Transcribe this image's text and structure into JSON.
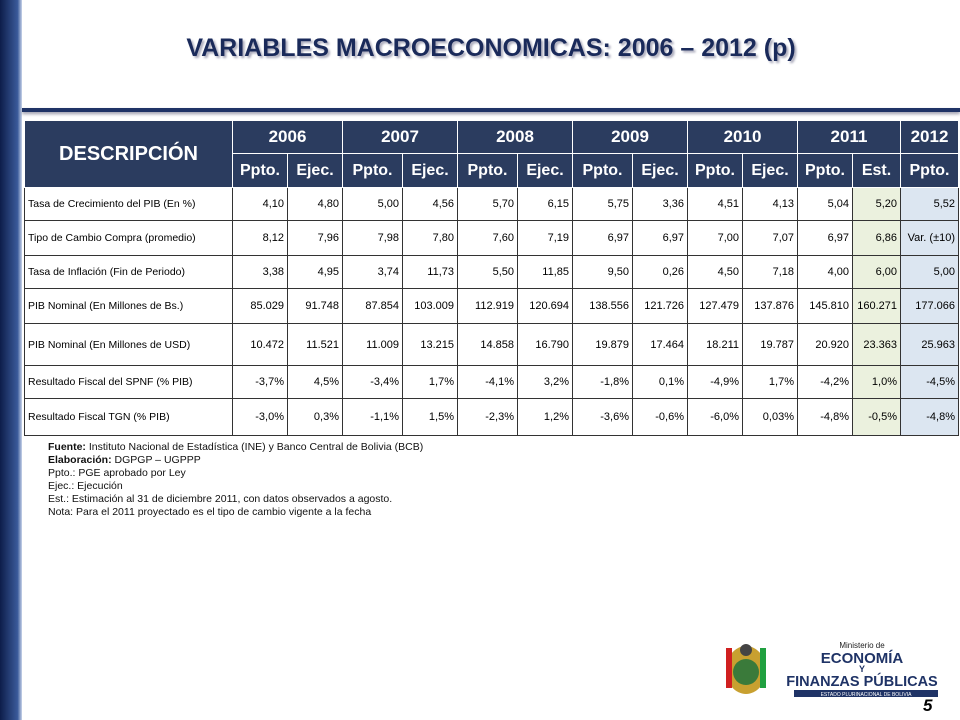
{
  "title": "VARIABLES MACROECONOMICAS: 2006 – 2012 (p)",
  "table": {
    "desc_header": "DESCRIPCIÓN",
    "years": [
      "2006",
      "2007",
      "2008",
      "2009",
      "2010",
      "2011",
      "2012"
    ],
    "subheaders": [
      "Ppto.",
      "Ejec.",
      "Ppto.",
      "Ejec.",
      "Ppto.",
      "Ejec.",
      "Ppto.",
      "Ejec.",
      "Ppto.",
      "Ejec.",
      "Ppto.",
      "Est.",
      "Ppto."
    ],
    "rows": [
      [
        "Tasa de Crecimiento del PIB (En %)",
        "4,10",
        "4,80",
        "5,00",
        "4,56",
        "5,70",
        "6,15",
        "5,75",
        "3,36",
        "4,51",
        "4,13",
        "5,04",
        "5,20",
        "5,52"
      ],
      [
        "Tipo de Cambio Compra (promedio)",
        "8,12",
        "7,96",
        "7,98",
        "7,80",
        "7,60",
        "7,19",
        "6,97",
        "6,97",
        "7,00",
        "7,07",
        "6,97",
        "6,86",
        "Var. (±10)"
      ],
      [
        "Tasa de Inflación (Fin de Periodo)",
        "3,38",
        "4,95",
        "3,74",
        "11,73",
        "5,50",
        "11,85",
        "9,50",
        "0,26",
        "4,50",
        "7,18",
        "4,00",
        "6,00",
        "5,00"
      ],
      [
        "PIB Nominal (En Millones de Bs.)",
        "85.029",
        "91.748",
        "87.854",
        "103.009",
        "112.919",
        "120.694",
        "138.556",
        "121.726",
        "127.479",
        "137.876",
        "145.810",
        "160.271",
        "177.066"
      ],
      [
        "PIB Nominal (En Millones de USD)",
        "10.472",
        "11.521",
        "11.009",
        "13.215",
        "14.858",
        "16.790",
        "19.879",
        "17.464",
        "18.211",
        "19.787",
        "20.920",
        "23.363",
        "25.963"
      ],
      [
        "Resultado Fiscal del SPNF (% PIB)",
        "-3,7%",
        "4,5%",
        "-3,4%",
        "1,7%",
        "-4,1%",
        "3,2%",
        "-1,8%",
        "0,1%",
        "-4,9%",
        "1,7%",
        "-4,2%",
        "1,0%",
        "-4,5%"
      ],
      [
        "Resultado Fiscal TGN (% PIB)",
        "-3,0%",
        "0,3%",
        "-1,1%",
        "1,5%",
        "-2,3%",
        "1,2%",
        "-3,6%",
        "-0,6%",
        "-6,0%",
        "0,03%",
        "-4,8%",
        "-0,5%",
        "-4,8%"
      ]
    ]
  },
  "notes": [
    {
      "label": "Fuente:",
      "text": "Instituto Nacional de Estadística (INE) y Banco Central de Bolivia (BCB)"
    },
    {
      "label": "Elaboración:",
      "text": "DGPGP – UGPPP"
    },
    {
      "text": "Ppto.: PGE  aprobado por Ley"
    },
    {
      "text": "Ejec.: Ejecución"
    },
    {
      "text": "Est.: Estimación  al 31 de diciembre 2011, con datos observados a agosto."
    },
    {
      "text": "Nota: Para el 2011 proyectado es el tipo de cambio vigente a la fecha"
    }
  ],
  "logo": {
    "line1": "Ministerio de",
    "line2": "ECONOMÍA",
    "line3": "Y",
    "line4": "FINANZAS PÚBLICAS",
    "line5": "ESTADO PLURINACIONAL DE BOLIVIA"
  },
  "page_number": "5"
}
